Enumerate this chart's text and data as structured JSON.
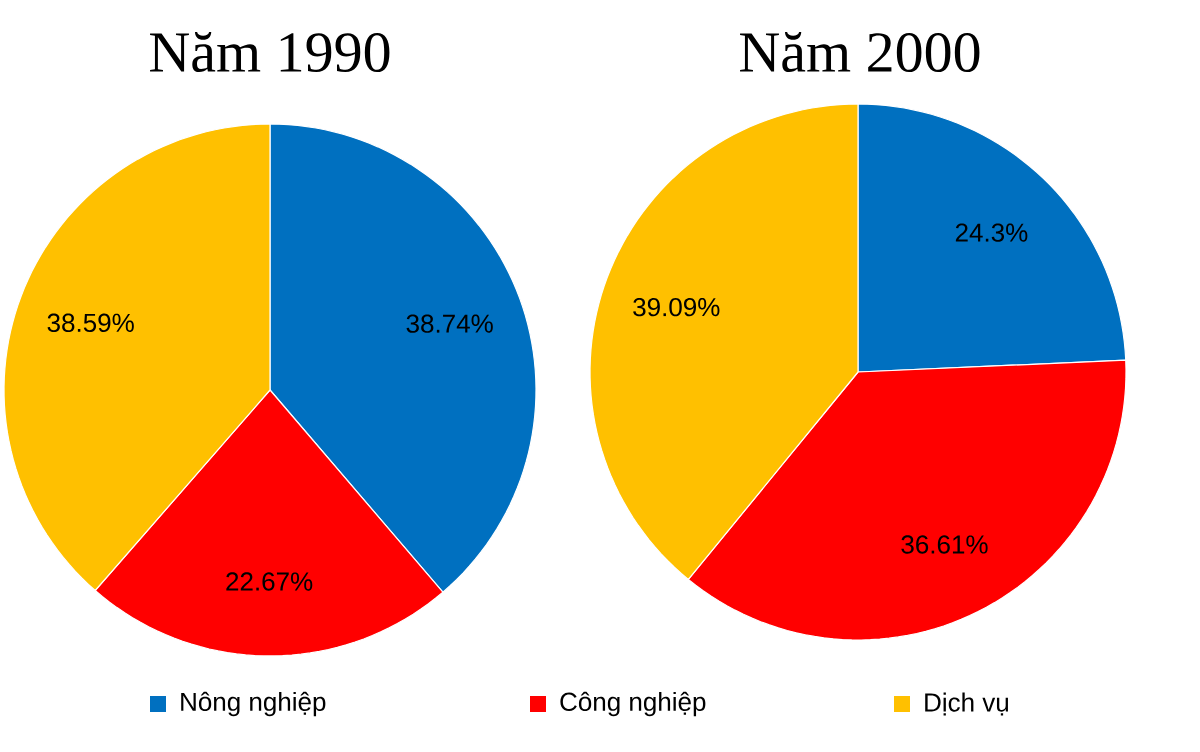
{
  "chart_data": [
    {
      "type": "pie",
      "title": "Năm 1990",
      "categories": [
        "Nông nghiệp",
        "Công nghiệp",
        "Dịch vụ"
      ],
      "values": [
        38.74,
        22.67,
        38.59
      ],
      "value_labels": [
        "38.74%",
        "22.67%",
        "38.59%"
      ],
      "colors": [
        "#0070c0",
        "#ff0000",
        "#ffc000"
      ],
      "legend": "bottom"
    },
    {
      "type": "pie",
      "title": "Năm 2000",
      "categories": [
        null,
        null,
        null
      ],
      "values": [
        24.3,
        36.61,
        39.09
      ],
      "value_labels": [
        "24.3%",
        "36.61%",
        "39.09%"
      ],
      "colors": [
        "#0070c0",
        "#ff0000",
        "#ffc000"
      ]
    }
  ]
}
